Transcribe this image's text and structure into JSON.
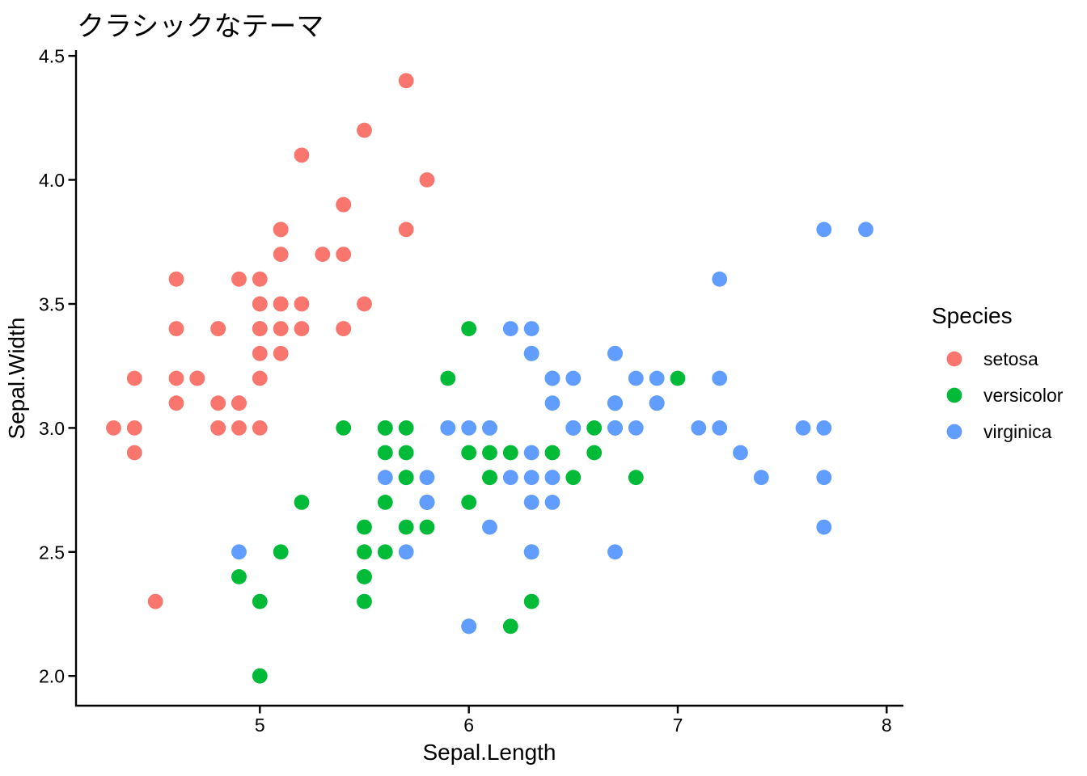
{
  "chart_data": {
    "type": "scatter",
    "title": "クラシックなテーマ",
    "xlabel": "Sepal.Length",
    "ylabel": "Sepal.Width",
    "legend_title": "Species",
    "legend_position": "right",
    "grid": false,
    "theme": "classic",
    "background": "#ffffff",
    "axis_color": "#000000",
    "xlim": [
      4.12,
      8.08
    ],
    "ylim": [
      1.88,
      4.52
    ],
    "x_ticks": [
      {
        "v": 5,
        "label": "5"
      },
      {
        "v": 6,
        "label": "6"
      },
      {
        "v": 7,
        "label": "7"
      },
      {
        "v": 8,
        "label": "8"
      }
    ],
    "y_ticks": [
      {
        "v": 2.0,
        "label": "2.0"
      },
      {
        "v": 2.5,
        "label": "2.5"
      },
      {
        "v": 3.0,
        "label": "3.0"
      },
      {
        "v": 3.5,
        "label": "3.5"
      },
      {
        "v": 4.0,
        "label": "4.0"
      },
      {
        "v": 4.5,
        "label": "4.5"
      }
    ],
    "series": [
      {
        "name": "setosa",
        "color": "#F8766D",
        "points": [
          [
            5.1,
            3.5
          ],
          [
            4.9,
            3.0
          ],
          [
            4.7,
            3.2
          ],
          [
            4.6,
            3.1
          ],
          [
            5.0,
            3.6
          ],
          [
            5.4,
            3.9
          ],
          [
            4.6,
            3.4
          ],
          [
            5.0,
            3.4
          ],
          [
            4.4,
            2.9
          ],
          [
            4.9,
            3.1
          ],
          [
            5.4,
            3.7
          ],
          [
            4.8,
            3.4
          ],
          [
            4.8,
            3.0
          ],
          [
            4.3,
            3.0
          ],
          [
            5.8,
            4.0
          ],
          [
            5.7,
            4.4
          ],
          [
            5.4,
            3.9
          ],
          [
            5.1,
            3.5
          ],
          [
            5.7,
            3.8
          ],
          [
            5.1,
            3.8
          ],
          [
            5.4,
            3.4
          ],
          [
            5.1,
            3.7
          ],
          [
            4.6,
            3.6
          ],
          [
            5.1,
            3.3
          ],
          [
            4.8,
            3.4
          ],
          [
            5.0,
            3.0
          ],
          [
            5.0,
            3.4
          ],
          [
            5.2,
            3.5
          ],
          [
            5.2,
            3.4
          ],
          [
            4.7,
            3.2
          ],
          [
            4.8,
            3.1
          ],
          [
            5.4,
            3.4
          ],
          [
            5.2,
            4.1
          ],
          [
            5.5,
            4.2
          ],
          [
            4.9,
            3.1
          ],
          [
            5.0,
            3.2
          ],
          [
            5.5,
            3.5
          ],
          [
            4.9,
            3.6
          ],
          [
            4.4,
            3.0
          ],
          [
            5.1,
            3.4
          ],
          [
            5.0,
            3.5
          ],
          [
            4.5,
            2.3
          ],
          [
            4.4,
            3.2
          ],
          [
            5.0,
            3.5
          ],
          [
            5.1,
            3.8
          ],
          [
            4.8,
            3.0
          ],
          [
            5.1,
            3.8
          ],
          [
            4.6,
            3.2
          ],
          [
            5.3,
            3.7
          ],
          [
            5.0,
            3.3
          ]
        ]
      },
      {
        "name": "versicolor",
        "color": "#00BA38",
        "points": [
          [
            7.0,
            3.2
          ],
          [
            6.4,
            3.2
          ],
          [
            6.9,
            3.1
          ],
          [
            5.5,
            2.3
          ],
          [
            6.5,
            2.8
          ],
          [
            5.7,
            2.8
          ],
          [
            6.3,
            3.3
          ],
          [
            4.9,
            2.4
          ],
          [
            6.6,
            2.9
          ],
          [
            5.2,
            2.7
          ],
          [
            5.0,
            2.0
          ],
          [
            5.9,
            3.0
          ],
          [
            6.0,
            2.2
          ],
          [
            6.1,
            2.9
          ],
          [
            5.6,
            2.9
          ],
          [
            6.7,
            3.1
          ],
          [
            5.6,
            3.0
          ],
          [
            5.8,
            2.7
          ],
          [
            6.2,
            2.2
          ],
          [
            5.6,
            2.5
          ],
          [
            5.9,
            3.2
          ],
          [
            6.1,
            2.8
          ],
          [
            6.3,
            2.5
          ],
          [
            6.1,
            2.8
          ],
          [
            6.4,
            2.9
          ],
          [
            6.6,
            3.0
          ],
          [
            6.8,
            2.8
          ],
          [
            6.7,
            3.0
          ],
          [
            6.0,
            2.9
          ],
          [
            5.7,
            2.6
          ],
          [
            5.5,
            2.4
          ],
          [
            5.5,
            2.4
          ],
          [
            5.8,
            2.7
          ],
          [
            6.0,
            2.7
          ],
          [
            5.4,
            3.0
          ],
          [
            6.0,
            3.4
          ],
          [
            6.7,
            3.1
          ],
          [
            6.3,
            2.3
          ],
          [
            5.6,
            3.0
          ],
          [
            5.5,
            2.5
          ],
          [
            5.5,
            2.6
          ],
          [
            6.1,
            3.0
          ],
          [
            5.8,
            2.6
          ],
          [
            5.0,
            2.3
          ],
          [
            5.6,
            2.7
          ],
          [
            5.7,
            3.0
          ],
          [
            5.7,
            2.9
          ],
          [
            6.2,
            2.9
          ],
          [
            5.1,
            2.5
          ],
          [
            5.7,
            2.8
          ]
        ]
      },
      {
        "name": "virginica",
        "color": "#619CFF",
        "points": [
          [
            6.3,
            3.3
          ],
          [
            5.8,
            2.7
          ],
          [
            7.1,
            3.0
          ],
          [
            6.3,
            2.9
          ],
          [
            6.5,
            3.0
          ],
          [
            7.6,
            3.0
          ],
          [
            4.9,
            2.5
          ],
          [
            7.3,
            2.9
          ],
          [
            6.7,
            2.5
          ],
          [
            7.2,
            3.6
          ],
          [
            6.5,
            3.2
          ],
          [
            6.4,
            2.7
          ],
          [
            6.8,
            3.0
          ],
          [
            5.7,
            2.5
          ],
          [
            5.8,
            2.8
          ],
          [
            6.4,
            3.2
          ],
          [
            6.5,
            3.0
          ],
          [
            7.7,
            3.8
          ],
          [
            7.7,
            2.6
          ],
          [
            6.0,
            2.2
          ],
          [
            6.9,
            3.2
          ],
          [
            5.6,
            2.8
          ],
          [
            7.7,
            2.8
          ],
          [
            6.3,
            2.7
          ],
          [
            6.7,
            3.3
          ],
          [
            7.2,
            3.2
          ],
          [
            6.2,
            2.8
          ],
          [
            6.1,
            3.0
          ],
          [
            6.4,
            2.8
          ],
          [
            7.2,
            3.0
          ],
          [
            7.4,
            2.8
          ],
          [
            7.9,
            3.8
          ],
          [
            6.4,
            2.8
          ],
          [
            6.3,
            2.8
          ],
          [
            6.1,
            2.6
          ],
          [
            7.7,
            3.0
          ],
          [
            6.3,
            3.4
          ],
          [
            6.4,
            3.1
          ],
          [
            6.0,
            3.0
          ],
          [
            6.9,
            3.1
          ],
          [
            6.7,
            3.1
          ],
          [
            6.9,
            3.1
          ],
          [
            5.8,
            2.7
          ],
          [
            6.8,
            3.2
          ],
          [
            6.7,
            3.3
          ],
          [
            6.7,
            3.0
          ],
          [
            6.3,
            2.5
          ],
          [
            6.5,
            3.0
          ],
          [
            6.2,
            3.4
          ],
          [
            5.9,
            3.0
          ]
        ]
      }
    ]
  }
}
